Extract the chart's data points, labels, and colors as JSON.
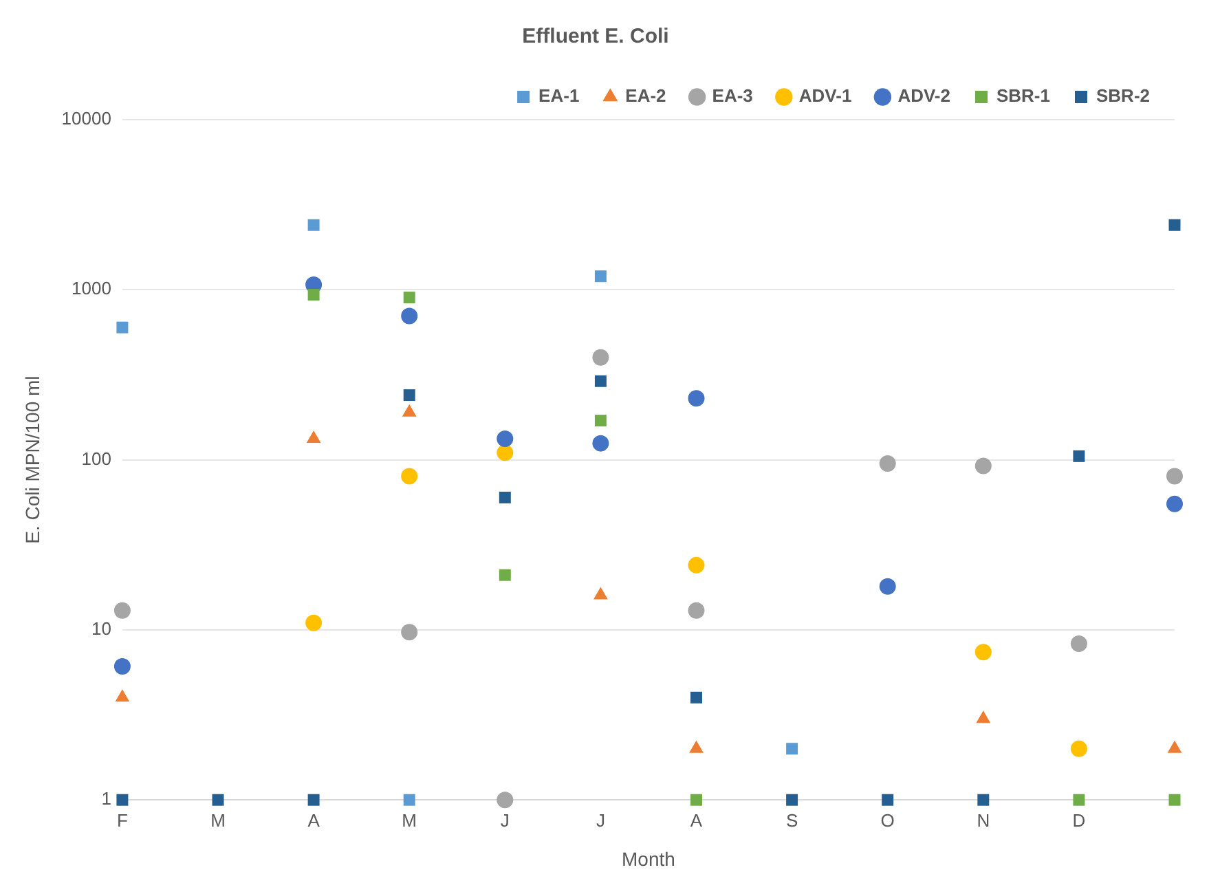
{
  "chart_data": {
    "type": "scatter",
    "title": "Effluent E. Coli",
    "xlabel": "Month",
    "ylabel": "E. Coli MPN/100 ml",
    "categories": [
      "F",
      "M",
      "A",
      "M",
      "J",
      "J",
      "A",
      "S",
      "O",
      "N",
      "D",
      null
    ],
    "log": "y",
    "ylim": [
      1,
      10000
    ],
    "yticks": [
      1,
      10,
      100,
      1000,
      10000
    ],
    "grid": "y",
    "legend": "top right",
    "series": [
      {
        "name": "EA-1",
        "color": "#5b9bd5",
        "marker": "square",
        "values": [
          600,
          null,
          2400,
          1,
          null,
          1200,
          null,
          2,
          null,
          null,
          null,
          null
        ]
      },
      {
        "name": "EA-2",
        "color": "#ed7d31",
        "marker": "triangle",
        "values": [
          4,
          null,
          133,
          190,
          null,
          16,
          2,
          null,
          null,
          3,
          null,
          2
        ]
      },
      {
        "name": "EA-3",
        "color": "#a5a5a5",
        "marker": "circle",
        "values": [
          13,
          null,
          null,
          9.7,
          1,
          400,
          13,
          null,
          95,
          92,
          8.3,
          80
        ]
      },
      {
        "name": "ADV-1",
        "color": "#ffc000",
        "marker": "circle",
        "values": [
          null,
          null,
          11,
          80,
          110,
          null,
          24,
          null,
          null,
          7.4,
          2,
          null
        ]
      },
      {
        "name": "ADV-2",
        "color": "#4472c4",
        "marker": "circle",
        "values": [
          6.1,
          null,
          1070,
          700,
          133,
          125,
          230,
          null,
          18,
          null,
          null,
          55
        ]
      },
      {
        "name": "SBR-1",
        "color": "#70ad47",
        "marker": "square",
        "values": [
          null,
          null,
          935,
          900,
          21,
          170,
          1,
          null,
          null,
          null,
          1,
          1
        ]
      },
      {
        "name": "SBR-2",
        "color": "#255e91",
        "marker": "square",
        "values": [
          1,
          1,
          1,
          240,
          60,
          290,
          4,
          1,
          1,
          1,
          105,
          2400
        ]
      }
    ]
  }
}
